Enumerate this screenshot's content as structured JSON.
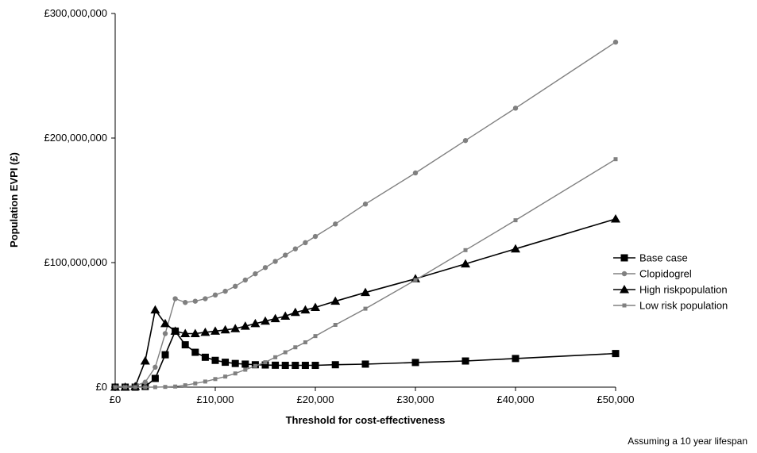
{
  "chart_data": {
    "type": "line",
    "xlabel": "Threshold for cost-effectiveness",
    "ylabel": "Population EVPI (£)",
    "xlim": [
      0,
      50000
    ],
    "ylim": [
      0,
      300000000
    ],
    "x_ticks": [
      "£0",
      "£10,000",
      "£20,000",
      "£30,000",
      "£40,000",
      "£50,000"
    ],
    "y_ticks": [
      "£0",
      "£100,000,000",
      "£200,000,000",
      "£300,000,000"
    ],
    "grid": false,
    "legend_position": "right",
    "note": "Assuming a 10 year lifespan",
    "series": [
      {
        "name": "Base case",
        "marker": "square",
        "color": "#000000",
        "points": [
          [
            0,
            0
          ],
          [
            1000,
            0
          ],
          [
            2000,
            0
          ],
          [
            3000,
            500000
          ],
          [
            4000,
            7000000
          ],
          [
            5000,
            26000000
          ],
          [
            6000,
            45000000
          ],
          [
            7000,
            34000000
          ],
          [
            8000,
            28000000
          ],
          [
            9000,
            24000000
          ],
          [
            10000,
            21500000
          ],
          [
            11000,
            20000000
          ],
          [
            12000,
            19000000
          ],
          [
            13000,
            18500000
          ],
          [
            14000,
            18000000
          ],
          [
            15000,
            17800000
          ],
          [
            16000,
            17600000
          ],
          [
            17000,
            17500000
          ],
          [
            18000,
            17500000
          ],
          [
            19000,
            17500000
          ],
          [
            20000,
            17500000
          ],
          [
            22000,
            18000000
          ],
          [
            25000,
            18500000
          ],
          [
            30000,
            19800000
          ],
          [
            35000,
            21000000
          ],
          [
            40000,
            23000000
          ],
          [
            50000,
            27000000
          ]
        ]
      },
      {
        "name": "Clopidogrel",
        "marker": "circle",
        "color": "#808080",
        "points": [
          [
            0,
            500000
          ],
          [
            1000,
            500000
          ],
          [
            2000,
            1000000
          ],
          [
            3000,
            4000000
          ],
          [
            4000,
            16000000
          ],
          [
            5000,
            43000000
          ],
          [
            6000,
            71000000
          ],
          [
            7000,
            68000000
          ],
          [
            8000,
            69000000
          ],
          [
            9000,
            71000000
          ],
          [
            10000,
            74000000
          ],
          [
            11000,
            77000000
          ],
          [
            12000,
            81000000
          ],
          [
            13000,
            86000000
          ],
          [
            14000,
            91000000
          ],
          [
            15000,
            96000000
          ],
          [
            16000,
            101000000
          ],
          [
            17000,
            106000000
          ],
          [
            18000,
            111000000
          ],
          [
            19000,
            116000000
          ],
          [
            20000,
            121000000
          ],
          [
            22000,
            131000000
          ],
          [
            25000,
            147000000
          ],
          [
            30000,
            172000000
          ],
          [
            35000,
            198000000
          ],
          [
            40000,
            224000000
          ],
          [
            50000,
            277000000
          ]
        ]
      },
      {
        "name": "High riskpopulation",
        "marker": "triangle",
        "color": "#000000",
        "points": [
          [
            0,
            0
          ],
          [
            1000,
            0
          ],
          [
            2000,
            500000
          ],
          [
            3000,
            21000000
          ],
          [
            4000,
            62000000
          ],
          [
            5000,
            51000000
          ],
          [
            6000,
            45000000
          ],
          [
            7000,
            43000000
          ],
          [
            8000,
            43000000
          ],
          [
            9000,
            44000000
          ],
          [
            10000,
            45000000
          ],
          [
            11000,
            46000000
          ],
          [
            12000,
            47000000
          ],
          [
            13000,
            49000000
          ],
          [
            14000,
            51000000
          ],
          [
            15000,
            53000000
          ],
          [
            16000,
            55000000
          ],
          [
            17000,
            57000000
          ],
          [
            18000,
            60000000
          ],
          [
            19000,
            62000000
          ],
          [
            20000,
            64000000
          ],
          [
            22000,
            69000000
          ],
          [
            25000,
            76000000
          ],
          [
            30000,
            87000000
          ],
          [
            35000,
            99000000
          ],
          [
            40000,
            111000000
          ],
          [
            50000,
            135000000
          ]
        ]
      },
      {
        "name": "Low risk population",
        "marker": "small-square",
        "color": "#808080",
        "points": [
          [
            0,
            0
          ],
          [
            1000,
            0
          ],
          [
            2000,
            0
          ],
          [
            3000,
            0
          ],
          [
            4000,
            0
          ],
          [
            5000,
            200000
          ],
          [
            6000,
            500000
          ],
          [
            7000,
            1500000
          ],
          [
            8000,
            3000000
          ],
          [
            9000,
            4500000
          ],
          [
            10000,
            6500000
          ],
          [
            11000,
            8500000
          ],
          [
            12000,
            11000000
          ],
          [
            13000,
            14000000
          ],
          [
            14000,
            17000000
          ],
          [
            15000,
            20000000
          ],
          [
            16000,
            24000000
          ],
          [
            17000,
            28000000
          ],
          [
            18000,
            32000000
          ],
          [
            19000,
            36000000
          ],
          [
            20000,
            41000000
          ],
          [
            22000,
            50000000
          ],
          [
            25000,
            63000000
          ],
          [
            30000,
            86000000
          ],
          [
            35000,
            110000000
          ],
          [
            40000,
            134000000
          ],
          [
            50000,
            183000000
          ]
        ]
      }
    ]
  }
}
